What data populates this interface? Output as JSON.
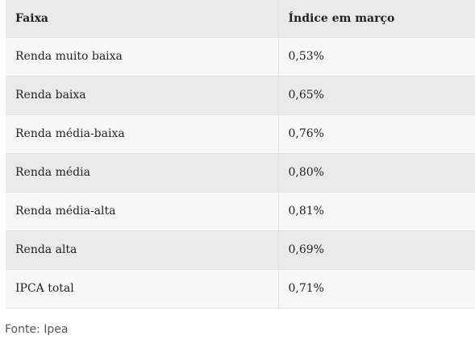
{
  "table": {
    "headers": [
      "Faixa",
      "Índice em março"
    ],
    "rows": [
      [
        "Renda muito baixa",
        "0,53%"
      ],
      [
        "Renda baixa",
        "0,65%"
      ],
      [
        "Renda média-baixa",
        "0,76%"
      ],
      [
        "Renda média",
        "0,80%"
      ],
      [
        "Renda média-alta",
        "0,81%"
      ],
      [
        "Renda alta",
        "0,69%"
      ],
      [
        "IPCA total",
        "0,71%"
      ]
    ]
  },
  "source": "Fonte: Ipea"
}
